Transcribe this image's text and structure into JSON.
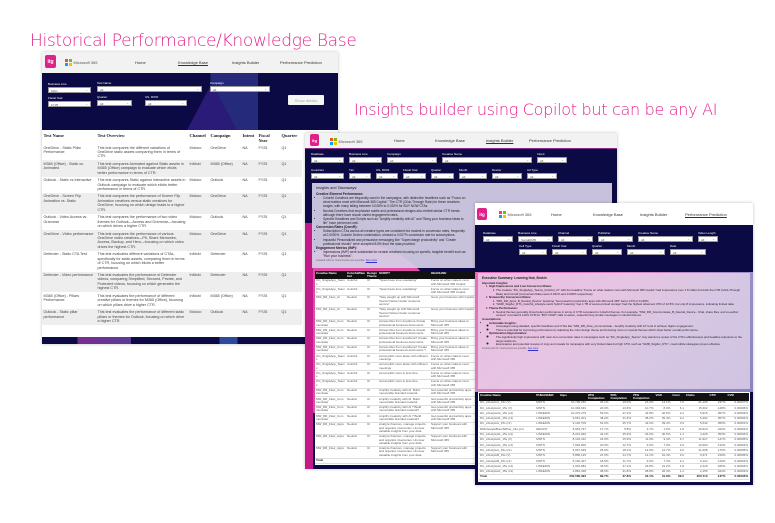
{
  "headings": {
    "left": "Historical Performance/Knowledge Base",
    "right": "Insights builder using Copilot but can be any AI"
  },
  "colors": {
    "accent": "#e3258d",
    "navy": "#0c0a44",
    "logo": "#e0218a"
  },
  "brand": {
    "logo": "itg",
    "product": "Microsoft 365"
  },
  "nav": {
    "home": "Home",
    "kb": "Knowledge Base",
    "ib": "Insights Builder",
    "pp": "Performance Prediction"
  },
  "kb": {
    "filters": [
      {
        "label": "Business Line",
        "value": "MAC"
      },
      {
        "label": "Test Name",
        "value": "All"
      },
      {
        "label": "Campaign",
        "value": "All"
      },
      {
        "label": "Fiscal Year",
        "value": "FY25"
      },
      {
        "label": "Quarter",
        "value": "All"
      },
      {
        "label": "US, ROW",
        "value": "All"
      }
    ],
    "show_details": "Show details",
    "columns": [
      "Test Name",
      "Test Overview",
      "Channel",
      "Campaign",
      "Intent",
      "Fiscal Year",
      "Quarter"
    ],
    "rows": [
      [
        "OneDrive - Static Pillar Performance",
        "This test compares the different variations of OneDrive static assets comparing them in terms of CTR.",
        "Moloco",
        "OneDrive",
        "NA",
        "FY25",
        "Q1"
      ],
      [
        "M365 (Office) - Static vs. Animated",
        "This test compares Animated against Static assets in M365 (Office) campaign to evaluate which elicits better performance in terms of CTR.",
        "InMobi",
        "M365 (Office)",
        "NA",
        "FY25",
        "Q1"
      ],
      [
        "Outlook - Static vs Interactive",
        "This test compares Static against Interactive assets in Outlook campaign to evaluate which elicits better performance in terms of CTR.",
        "Moloco",
        "Outlook",
        "NA",
        "FY25",
        "Q1"
      ],
      [
        "OneDrive - Screen Flip Animation vs. Static",
        "This test compares the performance of Screen Flip Animation creatives versus static creatives for OneDrive, focusing on which design leads to a higher CTR.",
        "Moloco",
        "OneDrive",
        "NA",
        "FY25",
        "Q1"
      ],
      [
        "Outlook - Video Access vs. Grammar",
        "This test compares the performance of two video themes for Outlook—Access and Grammar—focusing on which drives a higher CTR.",
        "Moloco",
        "Outlook",
        "NA",
        "FY25",
        "Q1"
      ],
      [
        "OneDrive - Video performance",
        "This test compares the performance of various OneDrive video creatives—Pit, Share Memories, Access, Backup, and Hero—focusing on which video drives the highest CTR.",
        "Moloco",
        "OneDrive",
        "NA",
        "FY25",
        "Q1"
      ],
      [
        "Defender - Static CTA Test",
        "This test evaluates different variations of CTAs, specifically for static assets, comparing them in terms of CTR, focusing on which elicits a better performance.",
        "InMobi",
        "Defender",
        "NA",
        "FY25",
        "Q1"
      ],
      [
        "Defender - Video performance",
        "This test evaluates the performance of Defender videos, comparing Simplified, Secured, Private, and Protected videos, focusing on which generates the highest CTR.",
        "InMobi",
        "Defender",
        "NA",
        "FY25",
        "Q1"
      ],
      [
        "M365 (Office) - Pillars Performance",
        "This test evaluates the performance of different creative pillars or themes for M365 (Office), focusing on which pillars drive a higher CTR.",
        "InMobi",
        "M365 (Office)",
        "NA",
        "FY25",
        "Q1"
      ],
      [
        "Outlook - Static pillar performance",
        "This test evaluates the performance of different static pillars or themes for Outlook, focusing on which drive a higher CTR.",
        "Moloco",
        "Outlook",
        "NA",
        "FY25",
        "Q1"
      ]
    ]
  },
  "ib": {
    "filters_row1": [
      {
        "label": "Database",
        "value": "All"
      },
      {
        "label": "Business Line",
        "value": "All"
      },
      {
        "label": "Campaign",
        "value": "All"
      },
      {
        "label": "Creative Name",
        "value": "All"
      },
      {
        "label": "Intent",
        "value": "All"
      }
    ],
    "filters_row2": [
      {
        "label": "Countries",
        "value": "All"
      },
      {
        "label": "Tier",
        "value": "All"
      },
      {
        "label": "US, ROW",
        "value": "All"
      },
      {
        "label": "Fiscal Year",
        "value": "All"
      },
      {
        "label": "Quarter",
        "value": "All"
      },
      {
        "label": "Month",
        "value": "All"
      },
      {
        "label": "Device",
        "value": "All"
      },
      {
        "label": "Ad Type",
        "value": "All"
      }
    ],
    "insights": {
      "title": "Insights and Takeaways:",
      "s1": "Creative Element Performance:",
      "b1": "Colorful Creatives are frequently used in the campaigns, with distinctive headlines such as \"Focus on what matters most with Microsoft 365 Copilot.\" The CTR (Click-Through Rate) for these creatives ranges, with many falling between 0.028% to 0.032% for BUY NOW CTAs.",
      "b2": "Neutral Creatives that emphasize subtle and professional designs also exhibit similar CTR trends although there have shown varied engagement rates.",
      "b3": "Specific Headlines and Scripts such as \"Amplify creativity with AI\" and \"Bring your business ideas to life\" have performed well.",
      "s2": "Conversion Rates (ConvR):",
      "b4": "Subscription CTAs across all creative types are consistent but modest in conversion rates, frequently at 0.0000%. Colorful Device combination, showed a 0.007% conversion rate for subscriptions.",
      "b5": "Impactful Personalized and persuasive messaging like \"Supercharge productivity\" and \"Create professional visuals\" were accepted 8.5% from the data provided.",
      "s3": "Engagement Metrics (IMP):",
      "b6": "Impressions (IMP) were substantial for neutral creatives focusing on specific, tangible benefit such as \"Run your business\".",
      "footer": "Created with AI. Inaccuracies are possible.",
      "footer_link": "See more"
    },
    "columns": [
      "Creative Name",
      "Colorful/Neutral",
      "Design Theme",
      "SCRIPT",
      "HEADLINE"
    ],
    "rows": [
      [
        "OC_SingleApp_Teams",
        "Colorful",
        "UI",
        "\"Spend less time notetaking\"",
        "Focus on what matters most with Microsoft 365 Copilot"
      ],
      [
        "OC_SingleApp_Teams",
        "Colorful",
        "UI",
        "\"Spend less time notetaking\"",
        "Focus on what matters most with Microsoft 365 Copilot"
      ],
      [
        "MW_DR_Flow_AI",
        "Neutral",
        "UI",
        "\"Stay caught up with Microsoft Teams! Deliver better customer service\"",
        "Grow your business with Copilot"
      ],
      [
        "MW_DR_Flow_AI",
        "Neutral",
        "UI",
        "\"Stay caught up with Microsoft Teams! Deliver better customer service\"",
        "Grow your business with Copilot"
      ],
      [
        "MW_DR_Flow_Communicate",
        "Neutral",
        "UI",
        "Access files from anywhere Create professional business documents",
        "Bring your business ideas to Microsoft 365"
      ],
      [
        "MW_DR_Flow_Communicate",
        "Neutral",
        "UI",
        "Access files from anywhere Create professional business documents",
        "Bring your business ideas to Microsoft 365"
      ],
      [
        "MW_DR_Flow_Communicate",
        "Neutral",
        "UI",
        "Access files from anywhere? Create professional business documents",
        "Bring your business ideas to Microsoft 365"
      ],
      [
        "MW_DR_Flow_Communicate",
        "Neutral",
        "UI",
        "Access files from anywhere? Create professional business documents ?",
        "Bring your business ideas to Microsoft 365"
      ],
      [
        "OC_SingleApp_Teams",
        "Colorful",
        "UI",
        "Accomplish more faster with efficient meetings",
        "Focus on what matters most with Microsoft 365"
      ],
      [
        "OC_SingleApp_Teams",
        "Colorful",
        "UI",
        "Accomplish more faster with efficient meetings",
        "Focus on what matters most with Microsoft 365"
      ],
      [
        "OC_SingleApp_Teams",
        "Colorful",
        "UI",
        "Accomplish more in less time",
        "Focus on what matters most with Microsoft 365"
      ],
      [
        "OC_SingleApp_Teams",
        "Colorful",
        "UI",
        "Accomplish more in less time",
        "Focus on what matters most with Microsoft 365"
      ],
      [
        "MW_DR_Flow_Communicate",
        "Neutral",
        "UI",
        "Amplify creativity with AI. Build memorable branded material",
        "Get powerful productivity apps with Microsoft 365"
      ],
      [
        "MW_DR_Flow_Communicate",
        "Neutral",
        "UI",
        "Amplify creativity with AI. Build memorable branded material",
        "Get powerful productivity apps with Microsoft 365"
      ],
      [
        "MW_DR_Flow_Communicate",
        "Neutral",
        "UI",
        "Amplify creativity with AI ? Build memorable branded material?",
        "Get powerful productivity apps with Microsoft 365"
      ],
      [
        "MW_DR_Flow_Communicate",
        "Neutral",
        "UI",
        "Amplify creativity with AI ? Build memorable branded material?",
        "Get powerful productivity apps with Microsoft 365"
      ],
      [
        "MW_DR_Flow_Apps",
        "Neutral",
        "UI",
        "Analyze finances, manage projects, and organize inventories. Uncover valuable insights from your data",
        "Support your business with Microsoft 365"
      ],
      [
        "MW_DR_Flow_Apps",
        "Neutral",
        "UI",
        "Analyze finances, manage projects, and organize inventories. Uncover valuable insights from your data",
        "Support your business with Microsoft 365"
      ],
      [
        "MW_DR_Flow_Apps",
        "Neutral",
        "UI",
        "Analyze finances, manage projects, and organize inventories. Uncover valuable insights from your data",
        "Support your business with Microsoft 365"
      ]
    ],
    "total": "Total"
  },
  "pp": {
    "filters_row1": [
      {
        "label": "Database",
        "value": "All"
      },
      {
        "label": "Business Line",
        "value": "SocialDMB"
      },
      {
        "label": "Channel",
        "value": "All"
      },
      {
        "label": "Publisher",
        "value": "All"
      },
      {
        "label": "Creative Name",
        "value": "All"
      },
      {
        "label": "Video Length",
        "value": "All"
      }
    ],
    "filters_row2": [
      {
        "label": "Cell Type",
        "value": "All"
      },
      {
        "label": "Fiscal Year",
        "value": "All"
      },
      {
        "label": "Quarter",
        "value": "All"
      },
      {
        "label": "Month",
        "value": "All"
      },
      {
        "label": "Date",
        "value": "All"
      }
    ],
    "summary": {
      "title": "Executive Summary: Learning Hub_Brokin",
      "important": "Important Insights:",
      "i1": "High Impressions and Low Conversion Rates:",
      "i1a": "The creative \"DC_SingleApp_Teams_Colorful_UI\" with the headline \"Focus on what matters most with Microsoft 365 Copilot\" had impressions over 1.8 million but both the CTR (Click-Through Rate) and ConvR (Conversion Rate) were 0.031% and 0.000% respectively.",
      "i2": "Noteworthy Conversion Rates:",
      "i2a": "\"MW_DR_Apps_B_Neutral_Device\" featuring \"Get powerful productivity apps with Microsoft 365\" had a CTR of 0.145%.",
      "i2b": "\"GMR_StigZer_RT1_Colorful_Lifestyle stock hybrid\" featuring \"Get 1 TB of secured cloud storage\" had the highest observed CTR of 12.5%, but only 8 impressions, indicating limited data.",
      "i3": "Theme Performance:",
      "i3a": "Neutral themes generally show better performance in terms of CTR compared to Colorful themes. For example, \"MW_DR_Communicate_B_Neutral_Device - Chat, share files, and co-author content\" recorded 0.112% CTR for \"BUY NOW\" calls to action, outperforming similar messages in colorful themes.",
      "assumptions": "Assumptions:",
      "a1": "Actionable Insights:",
      "a1a": "Campaigns using detailed, specific headlines and CTAs like \"MW_DR_Flow_Communicate - Amplify creativity with AI\" tend to achieve higher engagement.",
      "a1b": "There is potential for improving performance by adjusting the color design theme and focusing more on neutral themes which show better overall performance.",
      "a2": "Optimization Opportunities:",
      "a2a": "The significantly high impressions with near-zero conversion rates in campaigns such as \"DC_SingleApp_Teams\" may warrant a review of the CTA's effectiveness and headline relevance to the target audience.",
      "a2b": "Examination and potential revamp of copy and visuals for campaigns with very limited data but high CTR, such as \"GMR_StigZer_RT1\", could utilize strategies proven effective.",
      "footer": "Created with AI. Inaccuracies are possible.",
      "footer_link": "See more"
    },
    "columns": [
      "Creative Name",
      "PUBLISHER",
      "Imps",
      "25% Completion",
      "50% Completion",
      "75% Completion",
      "VCR",
      "Conv",
      "Clicks",
      "CTR",
      "CVR"
    ],
    "rows": [
      [
        "DC_LifestyleC_15s (V)",
        "MNTN",
        "10,705,260",
        "26.1%",
        "19.0%",
        "16.0%",
        "14.1%",
        "7.0",
        "21,105",
        ".197%",
        "0.00007%"
      ],
      [
        "DC_LifestyleA2_15s (V)",
        "MNTN",
        "10,394,649",
        "20.0%",
        "13.6%",
        "10.7%",
        "8.0%",
        "6.1",
        "15,402",
        ".148%",
        "0.00006%"
      ],
      [
        "DC_LifestyleA2_15s (c1)",
        "LINKEDIN",
        "10,370,275",
        "53.6%",
        "47.2%",
        "43.8%",
        "40.6%",
        "2.2",
        "5,915",
        ".057%",
        "0.00002%"
      ],
      [
        "DC_LifestyleA1_15s (c1)",
        "LINKEDIN",
        "9,661,301",
        "48.2%",
        "41.6%",
        "38.2%",
        "35.4%",
        "2.2",
        "5,492",
        ".057%",
        "0.00002%"
      ],
      [
        "DC_LifestyleA_15s (c1)",
        "LINKEDIN",
        "9,130,709",
        "51.0%",
        "45.7%",
        "42.6%",
        "39.3%",
        "0.9",
        "5,042",
        ".055%",
        "0.00001%"
      ],
      [
        "DMLifestyleBrandWhite_15s (c1)",
        "REDDIT",
        "8,963,797",
        "17.7%",
        "5.8%",
        "2.7%",
        "1.6%",
        "1.8",
        "19,910",
        ".222%",
        "0.00002%"
      ],
      [
        "DC_LifestyleA1_15s (c1)",
        "LINKEDIN",
        "8,243,940",
        "42.2%",
        "35.9%",
        "33.0%",
        "30.5%",
        "1.4",
        "4,428",
        ".054%",
        "0.00002%"
      ],
      [
        "DC_LifestyleA1_15s (V)",
        "MNTN",
        "8,102,312",
        "24.9%",
        "15.9%",
        "11.9%",
        "9.4%",
        "3.7",
        "11,927",
        ".147%",
        "0.00005%"
      ],
      [
        "DC_LifestyleA1_15s (c1)",
        "MNTN",
        "7,992,809",
        "20.9%",
        "12.7%",
        "9.0%",
        "7.0%",
        "2.9",
        "10,690",
        ".134%",
        "0.00004%"
      ],
      [
        "DC_LifestyleC_15s (c1)",
        "MNTN",
        "6,697,639",
        "25.9%",
        "18.1%",
        "14.9%",
        "12.7%",
        "3.0",
        "11,608",
        ".176%",
        "0.00005%"
      ],
      [
        "DC_LifestyleB_15s (V)",
        "MNTN",
        "5,886,145",
        "21.5%",
        "14.7%",
        "12.1%",
        "10.4%",
        "3.0",
        "9,371",
        ".159%",
        "0.00005%"
      ],
      [
        "DC_LifestyleB_15s (c1)",
        "MNTN",
        "5,160,407",
        "18.9%",
        "11.7%",
        "9.0%",
        "7.3%",
        "2.1",
        "6,122",
        ".119%",
        "0.00004%"
      ],
      [
        "DC_LifestyleA2_15s (c1)",
        "LINKEDIN",
        "4,932,684",
        "43.5%",
        "37.1%",
        "33.8%",
        "31.2%",
        "1.8",
        "2,229",
        ".045%",
        "0.00004%"
      ],
      [
        "DC_LifestyleA1_15s (c1)",
        "LINKEDIN",
        "4,881,328",
        "38.6%",
        "31.8%",
        "28.8%",
        "26.4%",
        "1.4",
        "2,156",
        ".044%",
        "0.00003%"
      ]
    ],
    "total": [
      "Total",
      "",
      "202,580,393",
      "89.7%",
      "37.8%",
      "34.1%",
      "31.9%",
      "69.0",
      "300,710",
      ".137%",
      "0.00003%"
    ]
  }
}
